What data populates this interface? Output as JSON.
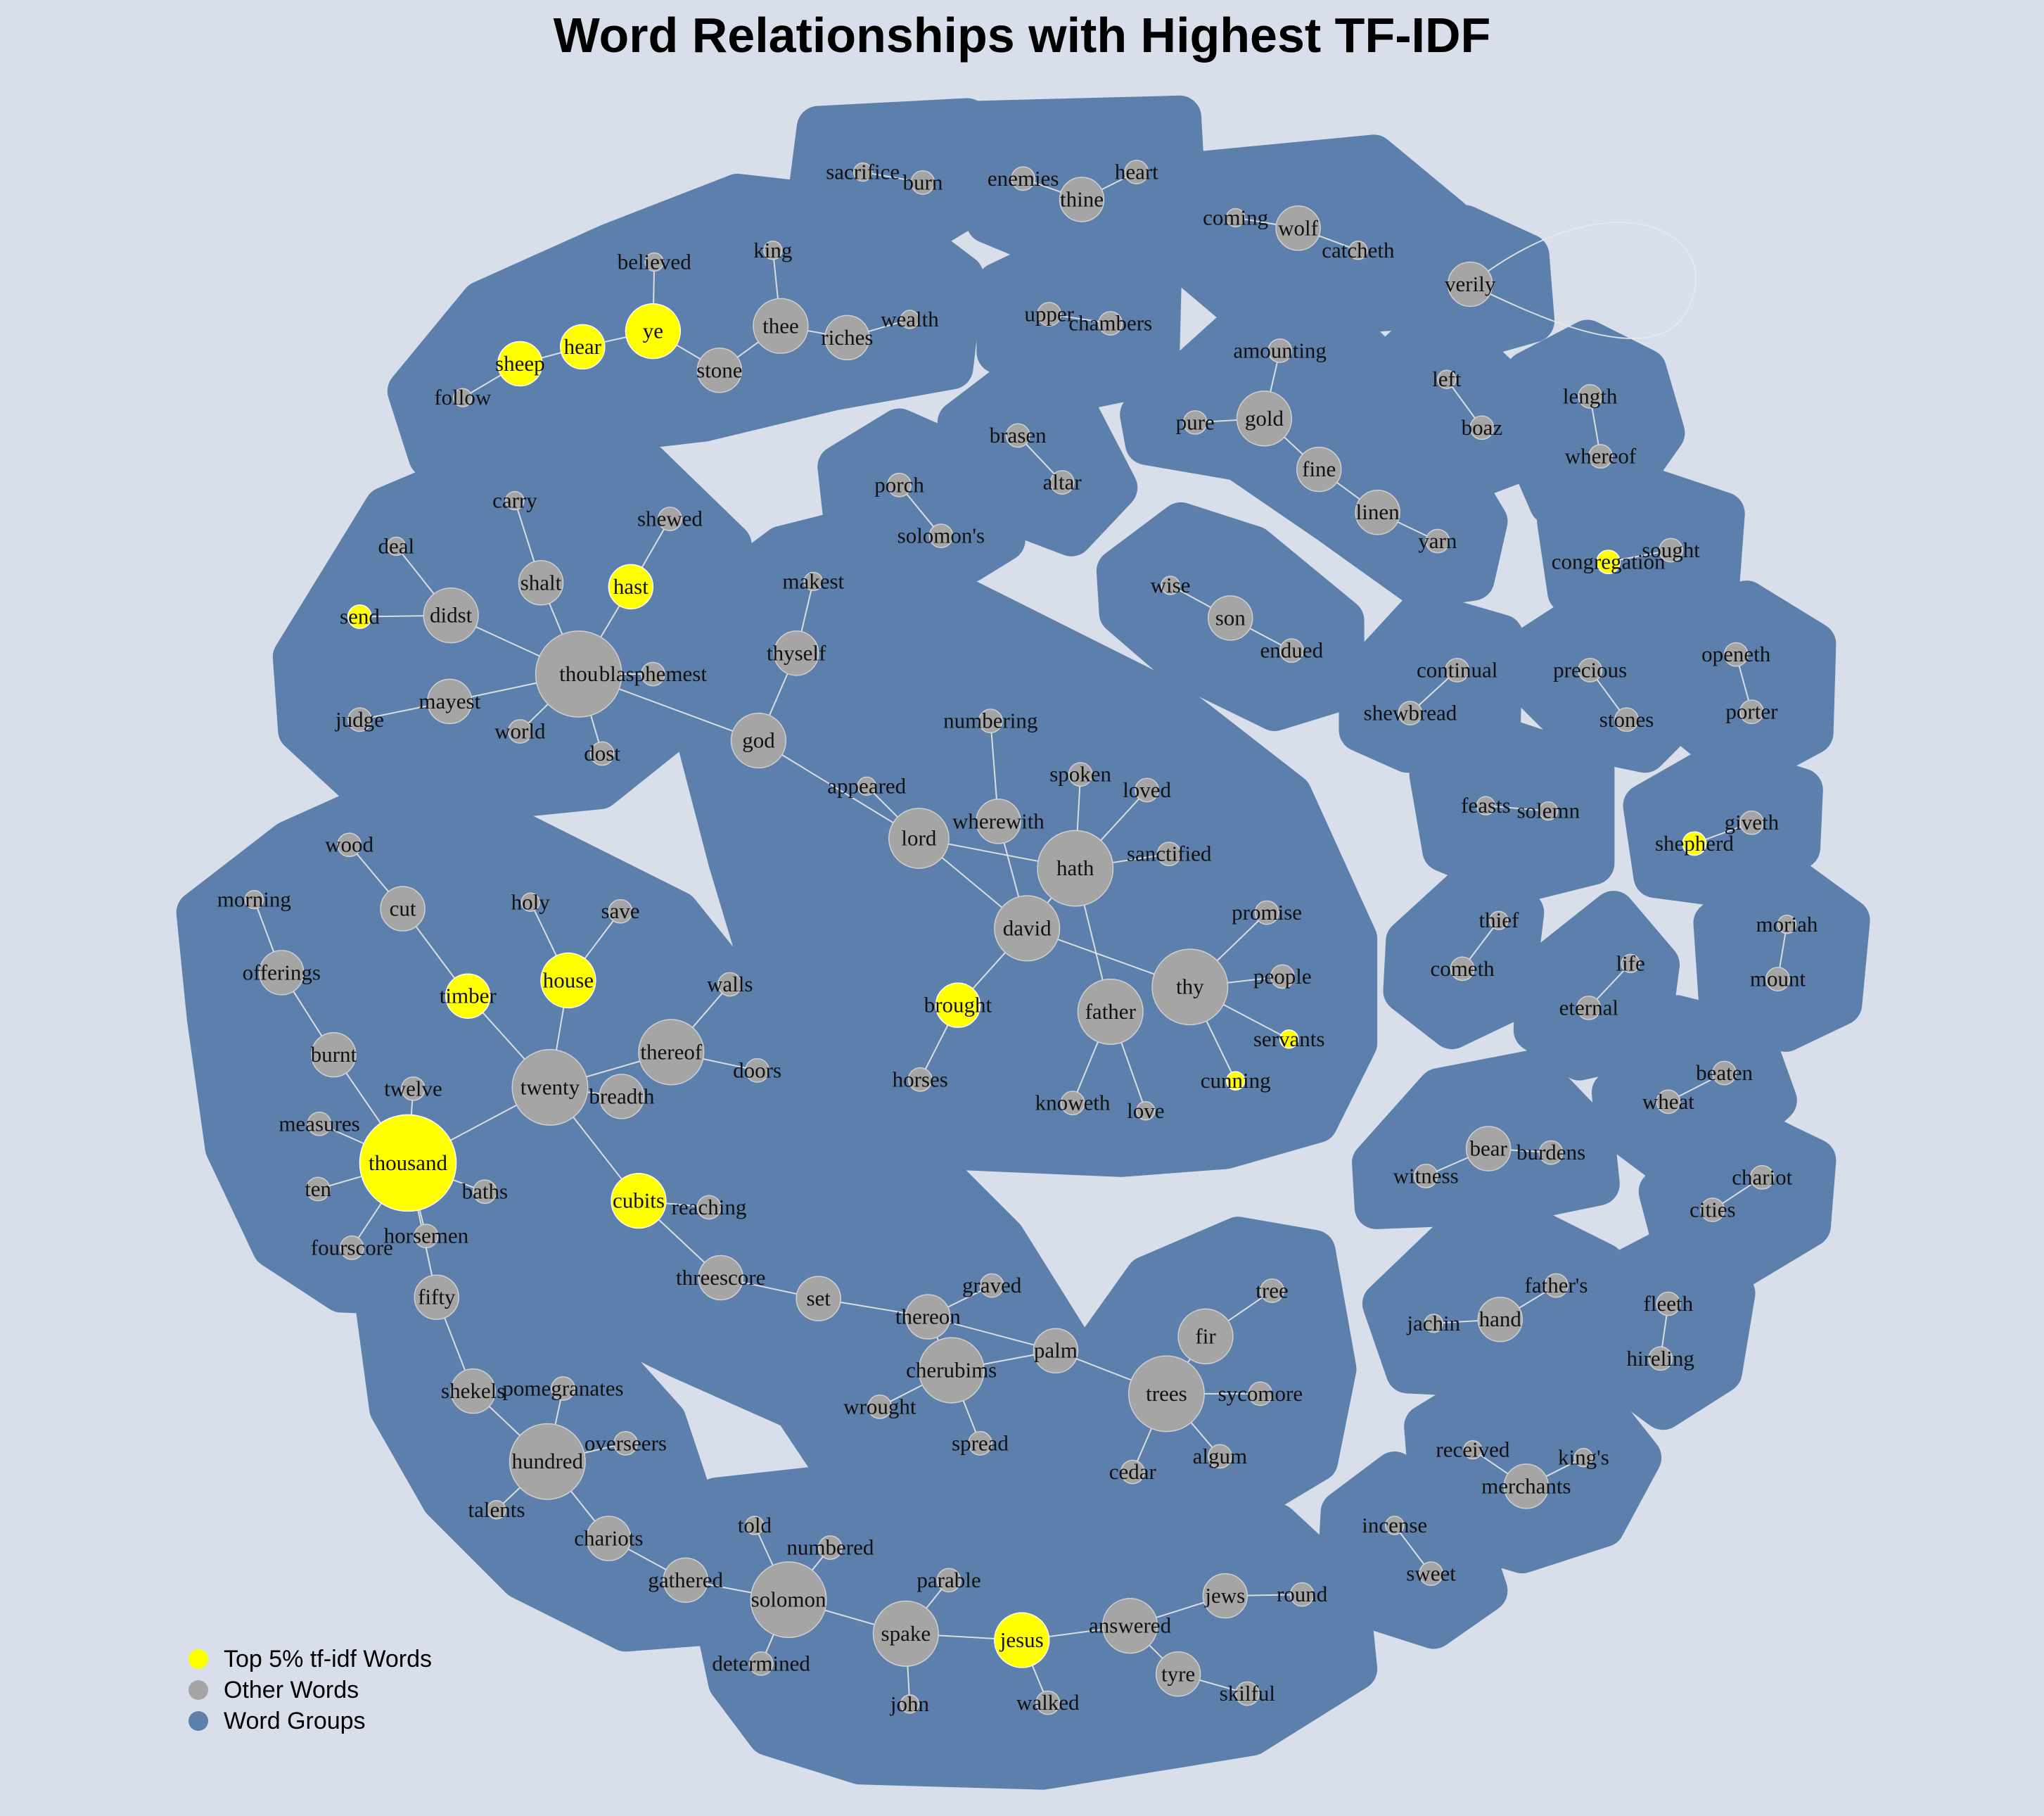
{
  "title": "Word Relationships with Highest TF-IDF",
  "colors": {
    "background": "#d8dfea",
    "group": "#5d7fab",
    "top_word": "#ffff00",
    "other_word": "#a5a5a5",
    "edge": "#e8e8e8"
  },
  "legend": [
    {
      "label": "Top 5% tf-idf Words",
      "color": "#ffff00"
    },
    {
      "label": "Other Words",
      "color": "#a5a5a5"
    },
    {
      "label": "Word Groups",
      "color": "#5d7fab"
    }
  ],
  "highlighted_words": [
    "ye",
    "hear",
    "sheep",
    "hast",
    "send",
    "timber",
    "house",
    "thousand",
    "cubits",
    "brought",
    "servants",
    "cunning",
    "jesus",
    "congregation",
    "shepherd"
  ],
  "nodes": [
    "sacrifice",
    "burn",
    "enemies",
    "heart",
    "thine",
    "coming",
    "wolf",
    "catcheth",
    "verily",
    "believed",
    "king",
    "ye",
    "thee",
    "wealth",
    "hear",
    "riches",
    "sheep",
    "stone",
    "follow",
    "upper",
    "chambers",
    "amounting",
    "left",
    "length",
    "boaz",
    "whereof",
    "pure",
    "gold",
    "fine",
    "linen",
    "yarn",
    "brasen",
    "altar",
    "porch",
    "solomon's",
    "congregation",
    "sought",
    "carry",
    "deal",
    "shewed",
    "shalt",
    "hast",
    "send",
    "didst",
    "thou",
    "blasphemest",
    "mayest",
    "judge",
    "world",
    "dost",
    "makest",
    "thyself",
    "god",
    "wise",
    "son",
    "endued",
    "continual",
    "shewbread",
    "precious",
    "stones",
    "openeth",
    "porter",
    "numbering",
    "feasts",
    "solemn",
    "spoken",
    "loved",
    "appeared",
    "wherewith",
    "lord",
    "hath",
    "sanctified",
    "shepherd",
    "giveth",
    "wood",
    "cut",
    "holy",
    "save",
    "morning",
    "offerings",
    "house",
    "timber",
    "walls",
    "burnt",
    "thereof",
    "twelve",
    "twenty",
    "breadth",
    "doors",
    "measures",
    "thousand",
    "ten",
    "baths",
    "cubits",
    "reaching",
    "fourscore",
    "horsemen",
    "david",
    "promise",
    "thy",
    "people",
    "brought",
    "father",
    "servants",
    "cunning",
    "knoweth",
    "love",
    "horses",
    "thief",
    "cometh",
    "life",
    "eternal",
    "moriah",
    "mount",
    "beaten",
    "wheat",
    "bear",
    "burdens",
    "witness",
    "chariot",
    "cities",
    "fifty",
    "threescore",
    "set",
    "graved",
    "thereon",
    "tree",
    "fir",
    "cherubims",
    "palm",
    "trees",
    "sycomore",
    "wrought",
    "spread",
    "algum",
    "cedar",
    "shekels",
    "pomegranates",
    "hundred",
    "overseers",
    "talents",
    "chariots",
    "told",
    "numbered",
    "gathered",
    "solomon",
    "parable",
    "spake",
    "jesus",
    "answered",
    "jews",
    "round",
    "determined",
    "tyre",
    "skilful",
    "john",
    "walked",
    "jachin",
    "hand",
    "father's",
    "fleeth",
    "hireling",
    "received",
    "king's",
    "merchants",
    "incense",
    "sweet"
  ]
}
